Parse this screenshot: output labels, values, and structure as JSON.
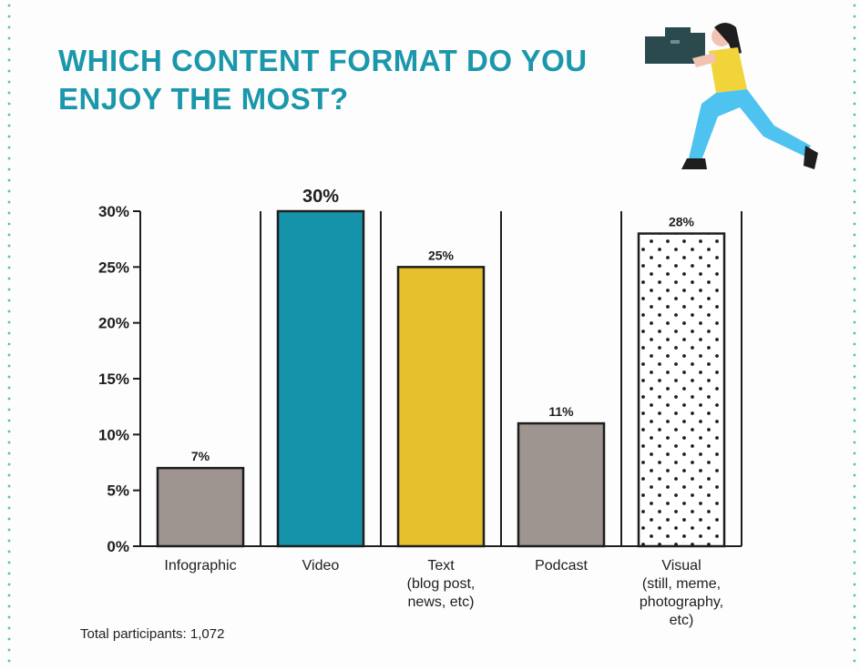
{
  "title": "WHICH CONTENT FORMAT DO YOU ENJOY THE MOST?",
  "footer": "Total participants: 1,072",
  "illustration": "videographer-with-camera",
  "chart_data": {
    "type": "bar",
    "title": "WHICH CONTENT FORMAT DO YOU ENJOY THE MOST?",
    "categories": [
      [
        "Infographic"
      ],
      [
        "Video"
      ],
      [
        "Text",
        "(blog post,",
        "news, etc)"
      ],
      [
        "Podcast"
      ],
      [
        "Visual",
        "(still, meme,",
        "photography,",
        "etc)"
      ]
    ],
    "values": [
      7,
      30,
      25,
      11,
      28
    ],
    "data_labels": [
      "7%",
      "30%",
      "25%",
      "11%",
      "28%"
    ],
    "colors": [
      "#9e9490",
      "#1593ab",
      "#e6c12d",
      "#9e9490",
      "dotted"
    ],
    "ylim": [
      0,
      30
    ],
    "yticks": [
      0,
      5,
      10,
      15,
      20,
      25,
      30
    ],
    "ytick_labels": [
      "0%",
      "5%",
      "10%",
      "15%",
      "20%",
      "25%",
      "30%"
    ],
    "xlabel": "",
    "ylabel": "",
    "grid": false
  }
}
